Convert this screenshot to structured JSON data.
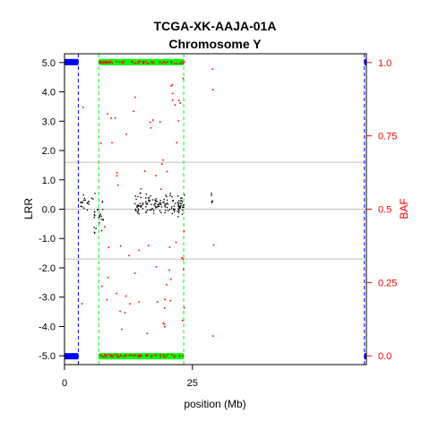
{
  "chart_data": {
    "type": "scatter",
    "title": "TCGA-XK-AAJA-01A",
    "subtitle": "Chromosome Y",
    "xlabel": "position (Mb)",
    "ylabel": "LRR",
    "y2label": "BAF",
    "xlim": [
      0,
      59
    ],
    "ylim": [
      -5.3,
      5.3
    ],
    "y2lim": [
      -0.03,
      1.03
    ],
    "x_ticks": [
      0,
      25
    ],
    "x_tick_labels": [
      "0",
      "25"
    ],
    "y_ticks": [
      5,
      4,
      3,
      2,
      1,
      0,
      -1,
      -2,
      -3,
      -4,
      -5
    ],
    "y_tick_labels": [
      "5.0",
      "4.0",
      "3.0",
      "2.0",
      "1.0",
      "0.0",
      "-1.0",
      "-2.0",
      "-3.0",
      "-4.0",
      "-5.0"
    ],
    "y2_ticks": [
      1.0,
      0.75,
      0.5,
      0.25,
      0.0
    ],
    "y2_tick_labels": [
      "1.0",
      "0.75",
      "0.5",
      "0.25",
      "0.0"
    ],
    "hlines_lrr": [
      1.6,
      0.0,
      -1.7
    ],
    "segments": [
      {
        "name": "",
        "color": "#0000ff",
        "start": 0.0,
        "end": 2.7
      },
      {
        "name": "",
        "color": "#00ff00",
        "start": 6.7,
        "end": 23.3
      },
      {
        "name": "",
        "color": "#0000ff",
        "start": 58.6,
        "end": 59.0
      }
    ],
    "colors": {
      "lrr": "#000000",
      "baf": "#ff0000",
      "segment_blue": "#0000ff",
      "segment_green": "#00ff00",
      "hline": "#bebebe"
    },
    "lrr_clusters": [
      {
        "x_min": 2.8,
        "x_max": 5.5,
        "y_mean": 0.25,
        "y_sd": 0.12,
        "n": 18
      },
      {
        "x_min": 5.5,
        "x_max": 7.5,
        "y_mean": -0.15,
        "y_sd": 0.3,
        "n": 25
      },
      {
        "x_min": 13.5,
        "x_max": 23.5,
        "y_mean": 0.15,
        "y_sd": 0.18,
        "n": 140
      },
      {
        "x_min": 28.5,
        "x_max": 29.2,
        "y_mean": 0.25,
        "y_sd": 0.15,
        "n": 6
      }
    ],
    "baf_bands": [
      {
        "x_min": 6.7,
        "x_max": 23.3,
        "baf": 1.0,
        "n": 60
      },
      {
        "x_min": 6.7,
        "x_max": 23.3,
        "baf": 0.0,
        "n": 60
      }
    ],
    "baf_scatter_count": 70,
    "random_seed": 17
  }
}
